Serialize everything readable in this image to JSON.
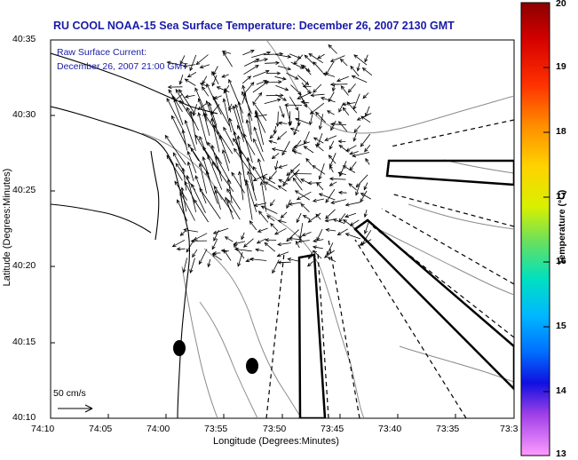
{
  "title": "RU COOL  NOAA-15  Sea Surface Temperature:  December 26, 2007 2130 GMT",
  "annotation": {
    "line1": "Raw Surface Current:",
    "line2": "December 26, 2007 21:00 GMT"
  },
  "scale_label": "50 cm/s",
  "x_axis": {
    "label": "Longitude (Degrees:Minutes)",
    "ticks": [
      "74:10",
      "74:05",
      "74:00",
      "73:55",
      "73:50",
      "73:45",
      "73:40",
      "73:35",
      "73:3"
    ]
  },
  "y_axis": {
    "label": "Latitude (Degrees:Minutes)",
    "ticks": [
      "40:35",
      "40:30",
      "40:25",
      "40:20",
      "40:15",
      "40:10"
    ]
  },
  "colorbar": {
    "label": "Temperature (°C)",
    "ticks": [
      "20",
      "19",
      "18",
      "17",
      "16",
      "15",
      "14",
      "13"
    ],
    "min": 13,
    "max": 20
  },
  "colors": {
    "title": "#1a1aa8",
    "land_outline": "#000000",
    "bathymetry": "#8c8c8c",
    "vectors": "#000000"
  }
}
